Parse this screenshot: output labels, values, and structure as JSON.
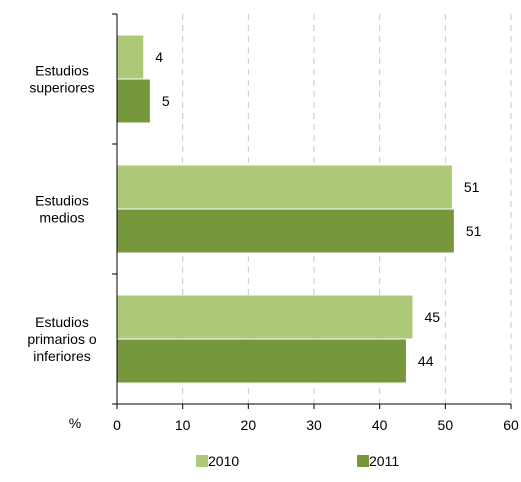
{
  "chart_data": {
    "type": "bar",
    "orientation": "horizontal",
    "categories": [
      [
        "Estudios",
        "superiores"
      ],
      [
        "Estudios",
        "medios"
      ],
      [
        "Estudios",
        "primarios o",
        "inferiores"
      ]
    ],
    "series": [
      {
        "name": "2010",
        "values": [
          4,
          51,
          45
        ],
        "color": "#afc97a"
      },
      {
        "name": "2011",
        "values": [
          5,
          51.3,
          44
        ],
        "color": "#77973d"
      }
    ],
    "data_labels": [
      [
        "4",
        "51",
        "45"
      ],
      [
        "5",
        "51",
        "44"
      ]
    ],
    "xlabel": "%",
    "xlim": [
      0,
      60
    ],
    "xticks": [
      0,
      10,
      20,
      30,
      40,
      50,
      60
    ],
    "grid": "vertical-dashed",
    "legend_position": "bottom"
  }
}
